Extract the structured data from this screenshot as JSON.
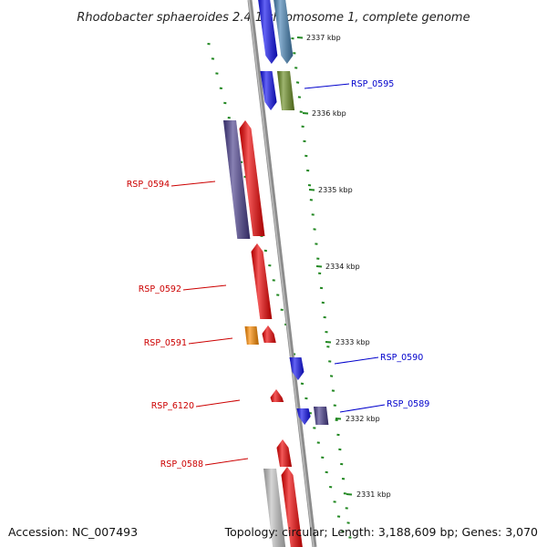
{
  "title": "Rhodobacter sphaeroides 2.4.1 chromosome 1, complete genome",
  "footer": {
    "accession": "Accession: NC_007493",
    "topology": "Topology: circular; Length: 3,188,609 bp; Genes: 3,070"
  },
  "ruler_labels": [
    "2337 kbp",
    "2336 kbp",
    "2335 kbp",
    "2334 kbp",
    "2333 kbp",
    "2332 kbp",
    "2331 kbp"
  ],
  "gene_labels": [
    {
      "text": "RSP_0595",
      "strand": "forward"
    },
    {
      "text": "RSP_0594",
      "strand": "reverse"
    },
    {
      "text": "RSP_0592",
      "strand": "reverse"
    },
    {
      "text": "RSP_0591",
      "strand": "reverse"
    },
    {
      "text": "RSP_0590",
      "strand": "forward"
    },
    {
      "text": "RSP_6120",
      "strand": "reverse"
    },
    {
      "text": "RSP_0589",
      "strand": "forward"
    },
    {
      "text": "RSP_0588",
      "strand": "reverse"
    }
  ],
  "colors": {
    "forward_label": "#0000cc",
    "reverse_label": "#cc0000",
    "tick": "#228822",
    "backbone": "#888888",
    "blue": "#1010ee",
    "steel_blue": "#4682b4",
    "olive": "#6b8e23",
    "slate": "#483d8b",
    "red": "#ee0000",
    "orange": "#ff8c00",
    "gray": "#c0c0c0"
  }
}
